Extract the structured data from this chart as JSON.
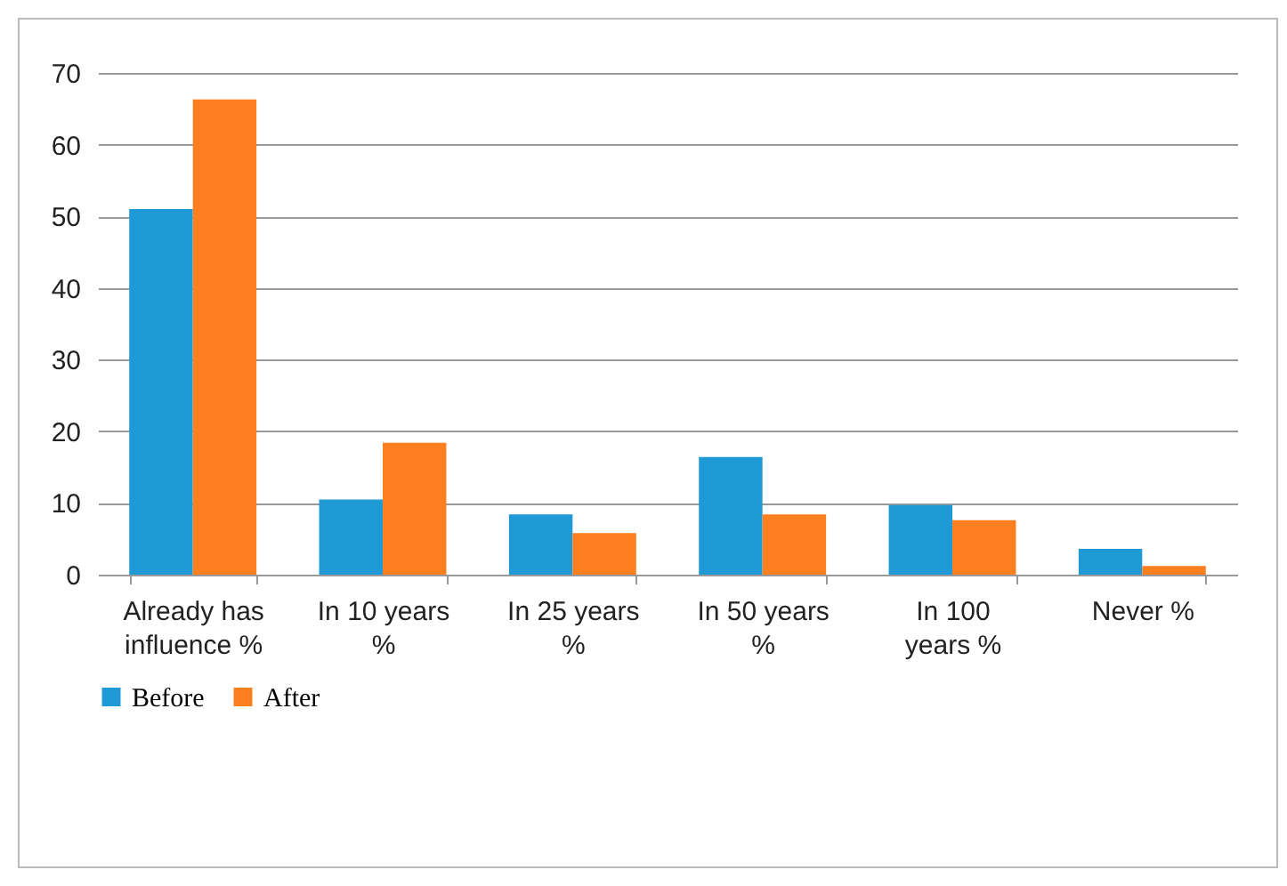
{
  "chart_data": {
    "type": "bar",
    "categories": [
      "Already has influence %",
      "In 10 years %",
      "In 25 years %",
      "In 50 years %",
      "In 100 years %",
      "Never %"
    ],
    "series": [
      {
        "name": "Before",
        "color": "#1f9ad6",
        "values": [
          51,
          10.5,
          8.4,
          16.4,
          9.7,
          3.6
        ]
      },
      {
        "name": "After",
        "color": "#fd7f20",
        "values": [
          66.3,
          18.4,
          5.8,
          8.4,
          7.6,
          1.2
        ]
      }
    ],
    "ylim": [
      0,
      70
    ],
    "yticks": [
      0,
      10,
      20,
      30,
      40,
      50,
      60,
      70
    ],
    "grid": "y",
    "legend": "bottom"
  }
}
